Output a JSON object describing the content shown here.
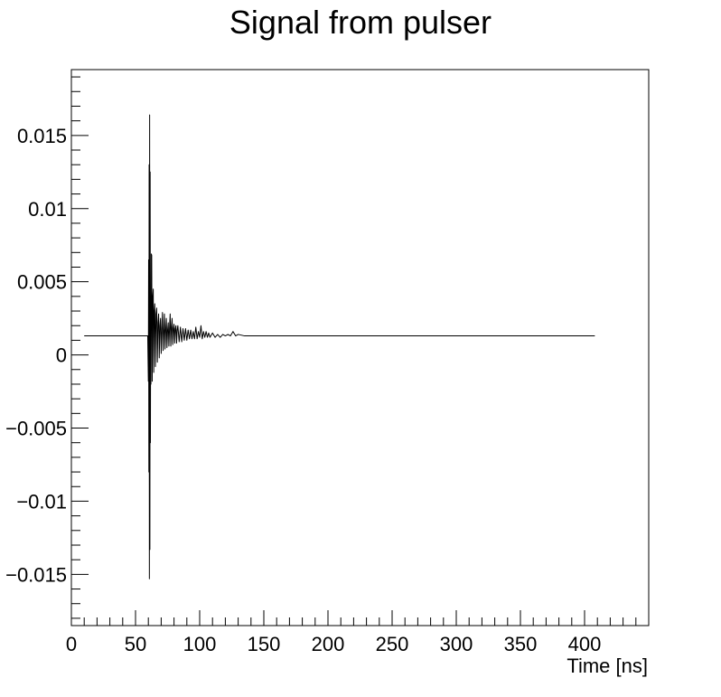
{
  "chart_data": {
    "type": "line",
    "title": "Signal from pulser",
    "xlabel": "Time [ns]",
    "ylabel": "",
    "xlim": [
      0,
      450
    ],
    "ylim": [
      -0.0185,
      0.0195
    ],
    "grid": false,
    "x_ticks": [
      {
        "value": 0,
        "label": "0"
      },
      {
        "value": 50,
        "label": "50"
      },
      {
        "value": 100,
        "label": "100"
      },
      {
        "value": 150,
        "label": "150"
      },
      {
        "value": 200,
        "label": "200"
      },
      {
        "value": 250,
        "label": "250"
      },
      {
        "value": 300,
        "label": "300"
      },
      {
        "value": 350,
        "label": "350"
      },
      {
        "value": 400,
        "label": "400"
      }
    ],
    "y_ticks": [
      {
        "value": 0.015,
        "label": "0.015"
      },
      {
        "value": 0.01,
        "label": "0.01"
      },
      {
        "value": 0.005,
        "label": "0.005"
      },
      {
        "value": 0,
        "label": "0"
      },
      {
        "value": -0.005,
        "label": "−0.005"
      },
      {
        "value": -0.01,
        "label": "−0.01"
      },
      {
        "value": -0.015,
        "label": "−0.015"
      }
    ],
    "series": [
      {
        "color": "#000000",
        "x": [
          10,
          59.5,
          60,
          60.2,
          60.4,
          60.6,
          60.8,
          61,
          61.2,
          61.4,
          61.6,
          61.8,
          62,
          62.3,
          62.6,
          63,
          63.4,
          63.8,
          64.2,
          64.6,
          65,
          65.5,
          66,
          66.5,
          67,
          67.5,
          68,
          68.5,
          69,
          69.5,
          70,
          70.5,
          71,
          71.5,
          72,
          72.5,
          73,
          73.5,
          74,
          74.5,
          75,
          75.5,
          76,
          76.5,
          77,
          77.5,
          78,
          78.5,
          79,
          79.5,
          80,
          80.5,
          81,
          81.5,
          82,
          82.5,
          83,
          84,
          85,
          86,
          87,
          88,
          89,
          90,
          91,
          92,
          93,
          94,
          95,
          96,
          97,
          98,
          99,
          100,
          101,
          102,
          103,
          104,
          105,
          106,
          107,
          108,
          110,
          112,
          114,
          116,
          118,
          120,
          122,
          124,
          126,
          128,
          130,
          135,
          140,
          150,
          200,
          250,
          300,
          350,
          408
        ],
        "y": [
          0.0013,
          0.0013,
          -0.0018,
          0.0065,
          -0.008,
          0.013,
          -0.0153,
          0.0164,
          -0.0133,
          0.0125,
          -0.006,
          0.004,
          -0.002,
          0.0069,
          0.0068,
          -0.0018,
          0.004,
          0.0045,
          -0.0012,
          0.003,
          0.0035,
          -0.0008,
          0.0028,
          0.0032,
          -0.0005,
          0.0022,
          0.0028,
          -0.0002,
          0.002,
          0.0025,
          0.0001,
          0.0018,
          0.0029,
          0.0003,
          0.0016,
          0.0028,
          0.0004,
          0.0017,
          0.0025,
          0.0005,
          0.0017,
          0.0022,
          0.0006,
          0.0018,
          0.0028,
          0.0006,
          0.0019,
          0.0025,
          0.0007,
          0.0018,
          0.0021,
          0.0008,
          0.0018,
          0.002,
          0.0008,
          0.0017,
          0.002,
          0.0009,
          0.0019,
          0.0009,
          0.0018,
          0.001,
          0.0018,
          0.001,
          0.0017,
          0.0011,
          0.0017,
          0.0011,
          0.0016,
          0.0011,
          0.0019,
          0.0011,
          0.0016,
          0.0012,
          0.002,
          0.0011,
          0.0016,
          0.0012,
          0.0016,
          0.0012,
          0.0015,
          0.0012,
          0.0015,
          0.0012,
          0.0014,
          0.0012,
          0.0014,
          0.0013,
          0.0014,
          0.0013,
          0.0016,
          0.0013,
          0.0014,
          0.0013,
          0.0013,
          0.0013,
          0.0013,
          0.0013,
          0.0013,
          0.0013,
          0.0013
        ]
      }
    ]
  }
}
